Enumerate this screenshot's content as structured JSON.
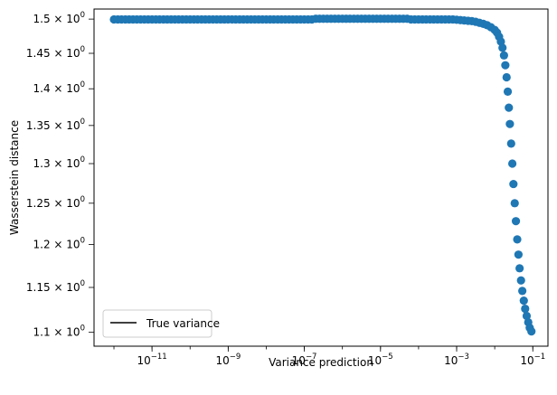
{
  "chart_data": {
    "type": "scatter",
    "xlabel": "Variance prediction",
    "ylabel": "Wasserstein distance",
    "xscale": "log",
    "yscale": "log",
    "xlim": [
      3e-13,
      0.25
    ],
    "ylim": [
      1.085,
      1.515
    ],
    "x_ticks": [
      {
        "value": 1e-11,
        "base": "10",
        "exp": "−11"
      },
      {
        "value": 1e-09,
        "base": "10",
        "exp": "−9"
      },
      {
        "value": 1e-07,
        "base": "10",
        "exp": "−7"
      },
      {
        "value": 1e-05,
        "base": "10",
        "exp": "−5"
      },
      {
        "value": 0.001,
        "base": "10",
        "exp": "−3"
      },
      {
        "value": 0.1,
        "base": "10",
        "exp": "−1"
      }
    ],
    "y_ticks": [
      {
        "value": 1.5,
        "mant": "1.5",
        "exp": "0"
      },
      {
        "value": 1.45,
        "mant": "1.45",
        "exp": "0"
      },
      {
        "value": 1.4,
        "mant": "1.4",
        "exp": "0"
      },
      {
        "value": 1.35,
        "mant": "1.35",
        "exp": "0"
      },
      {
        "value": 1.3,
        "mant": "1.3",
        "exp": "0"
      },
      {
        "value": 1.25,
        "mant": "1.25",
        "exp": "0"
      },
      {
        "value": 1.2,
        "mant": "1.2",
        "exp": "0"
      },
      {
        "value": 1.15,
        "mant": "1.15",
        "exp": "0"
      },
      {
        "value": 1.1,
        "mant": "1.1",
        "exp": "0"
      }
    ],
    "series": [
      {
        "color": "#1f77b4",
        "marker": "circle",
        "points": [
          [
            1e-12,
            1.4995
          ],
          [
            1.26e-12,
            1.4995
          ],
          [
            1.58e-12,
            1.4995
          ],
          [
            2e-12,
            1.4995
          ],
          [
            2.51e-12,
            1.4995
          ],
          [
            3.16e-12,
            1.4995
          ],
          [
            3.98e-12,
            1.4995
          ],
          [
            5.01e-12,
            1.4995
          ],
          [
            6.31e-12,
            1.4995
          ],
          [
            7.94e-12,
            1.4995
          ],
          [
            1e-11,
            1.4995
          ],
          [
            1.26e-11,
            1.4995
          ],
          [
            1.58e-11,
            1.4995
          ],
          [
            2e-11,
            1.4995
          ],
          [
            2.51e-11,
            1.4995
          ],
          [
            3.16e-11,
            1.4995
          ],
          [
            3.98e-11,
            1.4995
          ],
          [
            5.01e-11,
            1.4995
          ],
          [
            6.31e-11,
            1.4995
          ],
          [
            7.94e-11,
            1.4995
          ],
          [
            1e-10,
            1.4995
          ],
          [
            1.26e-10,
            1.4995
          ],
          [
            1.58e-10,
            1.4995
          ],
          [
            2e-10,
            1.4995
          ],
          [
            2.51e-10,
            1.4995
          ],
          [
            3.16e-10,
            1.4995
          ],
          [
            3.98e-10,
            1.4995
          ],
          [
            5.01e-10,
            1.4995
          ],
          [
            6.31e-10,
            1.4995
          ],
          [
            7.94e-10,
            1.4995
          ],
          [
            1e-09,
            1.4995
          ],
          [
            1.26e-09,
            1.4995
          ],
          [
            1.58e-09,
            1.4995
          ],
          [
            2e-09,
            1.4995
          ],
          [
            2.51e-09,
            1.4995
          ],
          [
            3.16e-09,
            1.4995
          ],
          [
            3.98e-09,
            1.4995
          ],
          [
            5.01e-09,
            1.4995
          ],
          [
            6.31e-09,
            1.4995
          ],
          [
            7.94e-09,
            1.4995
          ],
          [
            1e-08,
            1.4995
          ],
          [
            1.26e-08,
            1.4995
          ],
          [
            1.58e-08,
            1.4995
          ],
          [
            2e-08,
            1.4995
          ],
          [
            2.51e-08,
            1.4995
          ],
          [
            3.16e-08,
            1.4995
          ],
          [
            3.98e-08,
            1.4995
          ],
          [
            5.01e-08,
            1.4995
          ],
          [
            6.31e-08,
            1.4995
          ],
          [
            7.94e-08,
            1.4995
          ],
          [
            1e-07,
            1.4995
          ],
          [
            1.26e-07,
            1.4995
          ],
          [
            1.58e-07,
            1.4995
          ],
          [
            2e-07,
            1.5005
          ],
          [
            2.51e-07,
            1.5005
          ],
          [
            3.16e-07,
            1.5005
          ],
          [
            3.98e-07,
            1.5005
          ],
          [
            5.01e-07,
            1.5005
          ],
          [
            6.31e-07,
            1.5005
          ],
          [
            7.94e-07,
            1.5005
          ],
          [
            1e-06,
            1.5005
          ],
          [
            1.26e-06,
            1.5005
          ],
          [
            1.58e-06,
            1.5005
          ],
          [
            2e-06,
            1.5005
          ],
          [
            2.51e-06,
            1.5005
          ],
          [
            3.16e-06,
            1.5005
          ],
          [
            3.98e-06,
            1.5005
          ],
          [
            5.01e-06,
            1.5005
          ],
          [
            6.31e-06,
            1.5005
          ],
          [
            7.94e-06,
            1.5005
          ],
          [
            1e-05,
            1.5005
          ],
          [
            1.26e-05,
            1.5005
          ],
          [
            1.58e-05,
            1.5005
          ],
          [
            2e-05,
            1.5005
          ],
          [
            2.51e-05,
            1.5005
          ],
          [
            3.16e-05,
            1.5005
          ],
          [
            3.98e-05,
            1.5005
          ],
          [
            5.01e-05,
            1.5005
          ],
          [
            6.31e-05,
            1.4995
          ],
          [
            7.94e-05,
            1.4995
          ],
          [
            0.0001,
            1.4995
          ],
          [
            0.000126,
            1.4995
          ],
          [
            0.000158,
            1.4995
          ],
          [
            0.0002,
            1.4995
          ],
          [
            0.000251,
            1.4995
          ],
          [
            0.000316,
            1.4995
          ],
          [
            0.000398,
            1.4995
          ],
          [
            0.000501,
            1.4995
          ],
          [
            0.000631,
            1.4995
          ],
          [
            0.000794,
            1.4995
          ],
          [
            0.001,
            1.499
          ],
          [
            0.00126,
            1.4985
          ],
          [
            0.00158,
            1.498
          ],
          [
            0.002,
            1.4975
          ],
          [
            0.00251,
            1.497
          ],
          [
            0.00316,
            1.496
          ],
          [
            0.00398,
            1.4945
          ],
          [
            0.00501,
            1.493
          ],
          [
            0.00631,
            1.491
          ],
          [
            0.00794,
            1.488
          ],
          [
            0.01,
            1.484
          ],
          [
            0.0115,
            1.48
          ],
          [
            0.013,
            1.474
          ],
          [
            0.0145,
            1.467
          ],
          [
            0.016,
            1.458
          ],
          [
            0.0175,
            1.447
          ],
          [
            0.019,
            1.433
          ],
          [
            0.0205,
            1.416
          ],
          [
            0.022,
            1.396
          ],
          [
            0.0235,
            1.374
          ],
          [
            0.025,
            1.352
          ],
          [
            0.027,
            1.326
          ],
          [
            0.029,
            1.3
          ],
          [
            0.031,
            1.274
          ],
          [
            0.0335,
            1.25
          ],
          [
            0.036,
            1.228
          ],
          [
            0.039,
            1.206
          ],
          [
            0.042,
            1.188
          ],
          [
            0.045,
            1.172
          ],
          [
            0.049,
            1.158
          ],
          [
            0.053,
            1.146
          ],
          [
            0.058,
            1.135
          ],
          [
            0.063,
            1.126
          ],
          [
            0.069,
            1.118
          ],
          [
            0.076,
            1.111
          ],
          [
            0.083,
            1.105
          ],
          [
            0.092,
            1.101
          ]
        ]
      }
    ],
    "legend": {
      "position": "lower-left",
      "entries": [
        {
          "label": "True variance",
          "color": "#000000",
          "style": "line"
        }
      ]
    }
  }
}
